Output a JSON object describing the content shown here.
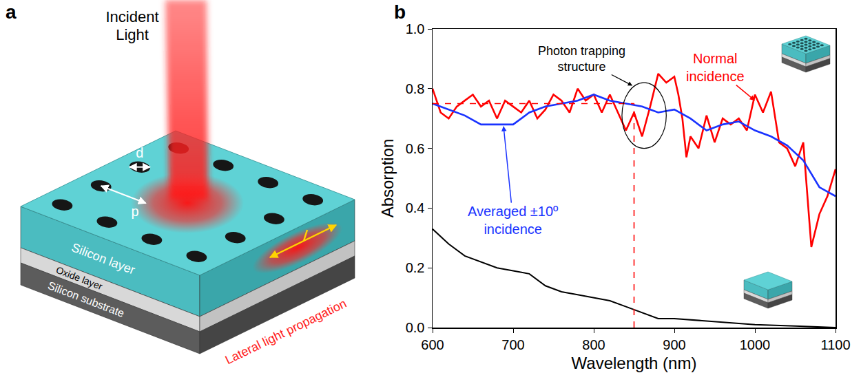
{
  "diagram": {
    "label": "a",
    "incident_light": "Incident Light",
    "d": "d",
    "p": "p",
    "layers": [
      "Silicon layer",
      "Oxide layer",
      "Silicon substrate"
    ],
    "lateral": "Lateral light propagation"
  },
  "chart_data": {
    "type": "line",
    "panel_label": "b",
    "xlabel": "Wavelength (nm)",
    "ylabel": "Absorption",
    "xlim": [
      600,
      1100
    ],
    "xticks": [
      600,
      700,
      800,
      900,
      1000,
      1100
    ],
    "ylim": [
      0,
      1
    ],
    "yticks": [
      {
        "value": 0,
        "label": "0.0"
      },
      0.2,
      0.4,
      0.6,
      0.8,
      {
        "value": 1,
        "label": "1.0"
      }
    ],
    "grid": false,
    "series": [
      {
        "name": "Normal incidence",
        "color": "#ff0000",
        "x": [
          600,
          610,
          620,
          630,
          640,
          650,
          660,
          670,
          680,
          690,
          700,
          710,
          720,
          730,
          740,
          750,
          760,
          770,
          780,
          790,
          800,
          810,
          820,
          830,
          840,
          850,
          860,
          870,
          880,
          890,
          900,
          905,
          910,
          915,
          920,
          930,
          940,
          950,
          960,
          970,
          980,
          990,
          1000,
          1010,
          1020,
          1030,
          1040,
          1050,
          1060,
          1070,
          1080,
          1090,
          1100
        ],
        "values": [
          0.8,
          0.72,
          0.7,
          0.74,
          0.76,
          0.78,
          0.74,
          0.76,
          0.7,
          0.76,
          0.74,
          0.72,
          0.76,
          0.7,
          0.73,
          0.78,
          0.76,
          0.72,
          0.8,
          0.76,
          0.78,
          0.72,
          0.78,
          0.72,
          0.66,
          0.72,
          0.64,
          0.74,
          0.85,
          0.82,
          0.84,
          0.78,
          0.7,
          0.57,
          0.64,
          0.6,
          0.71,
          0.62,
          0.7,
          0.68,
          0.7,
          0.66,
          0.78,
          0.72,
          0.79,
          0.62,
          0.6,
          0.54,
          0.62,
          0.27,
          0.38,
          0.44,
          0.53
        ]
      },
      {
        "name": "Averaged ±10º incidence",
        "color": "#1a33ff",
        "x": [
          600,
          620,
          640,
          660,
          680,
          700,
          720,
          740,
          760,
          780,
          800,
          820,
          840,
          860,
          880,
          900,
          920,
          940,
          960,
          980,
          1000,
          1020,
          1040,
          1060,
          1080,
          1100
        ],
        "values": [
          0.75,
          0.73,
          0.71,
          0.68,
          0.68,
          0.68,
          0.72,
          0.74,
          0.75,
          0.76,
          0.78,
          0.76,
          0.75,
          0.74,
          0.72,
          0.73,
          0.7,
          0.66,
          0.68,
          0.69,
          0.66,
          0.64,
          0.61,
          0.56,
          0.47,
          0.44
        ]
      },
      {
        "color": "#000000",
        "x": [
          600,
          620,
          640,
          660,
          680,
          700,
          720,
          740,
          760,
          780,
          800,
          820,
          840,
          860,
          880,
          900,
          950,
          1000,
          1050,
          1100
        ],
        "values": [
          0.33,
          0.28,
          0.24,
          0.22,
          0.2,
          0.19,
          0.18,
          0.14,
          0.12,
          0.11,
          0.1,
          0.09,
          0.07,
          0.05,
          0.03,
          0.03,
          0.02,
          0.01,
          0.005,
          0.0
        ]
      }
    ],
    "annotations": [
      {
        "text": "Photon trapping structure"
      }
    ],
    "reference_lines": {
      "x": 850,
      "y": 0.75
    }
  }
}
